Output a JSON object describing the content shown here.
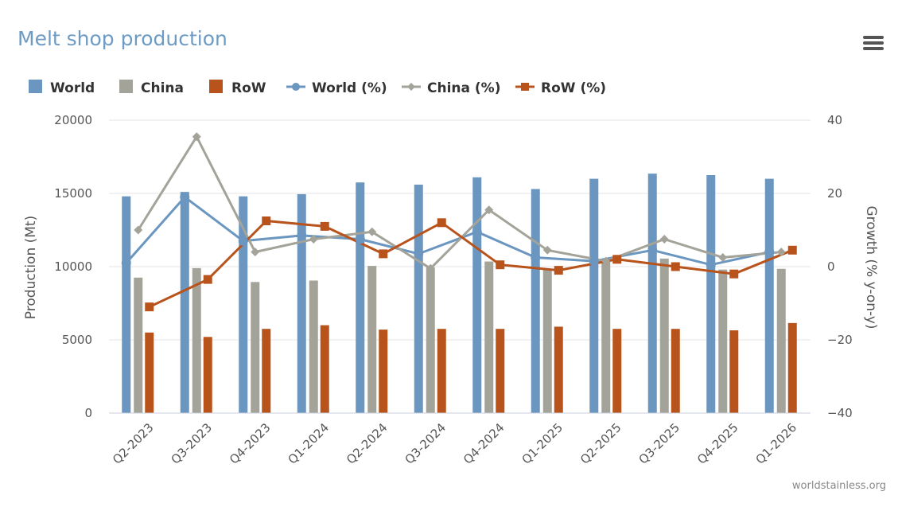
{
  "page": {
    "title": "Melt shop production",
    "credit": "worldstainless.org",
    "menu_icon": "hamburger-menu-icon"
  },
  "colors": {
    "world": "#6a96c0",
    "china": "#a3a39a",
    "row": "#b9531c",
    "title": "#6e9bc4",
    "grid": "#e6e6e6"
  },
  "chart_data": {
    "type": "bar",
    "title": "Melt shop production",
    "categories": [
      "Q2-2023",
      "Q3-2023",
      "Q4-2023",
      "Q1-2024",
      "Q2-2024",
      "Q3-2024",
      "Q4-2024",
      "Q1-2025",
      "Q2-2025",
      "Q3-2025",
      "Q4-2025",
      "Q1-2026"
    ],
    "left_axis": {
      "label": "Production (Mt)",
      "ylim": [
        0,
        20000
      ],
      "ticks": [
        "0",
        "5000",
        "10000",
        "15000",
        "20000"
      ]
    },
    "right_axis": {
      "label": "Growth (% y-on-y)",
      "ylim": [
        -40,
        40
      ],
      "ticks": [
        "−40",
        "−20",
        "0",
        "20",
        "40"
      ]
    },
    "grid": true,
    "legend_position": "top-left",
    "bar_series": [
      {
        "name": "World",
        "values": [
          14800,
          15100,
          14800,
          14950,
          15750,
          15600,
          16100,
          15300,
          16000,
          16350,
          16250,
          16000
        ]
      },
      {
        "name": "China",
        "values": [
          9250,
          9900,
          8950,
          9050,
          10050,
          9950,
          10350,
          9850,
          10400,
          10550,
          9800,
          9850
        ]
      },
      {
        "name": "RoW",
        "values": [
          5500,
          5200,
          5750,
          6000,
          5700,
          5750,
          5750,
          5900,
          5750,
          5750,
          5650,
          6150
        ]
      }
    ],
    "line_series": [
      {
        "name": "World (%)",
        "values": [
          1,
          19,
          7,
          8.5,
          7.5,
          3.5,
          9.5,
          2.5,
          1.5,
          4.5,
          0.5,
          4
        ]
      },
      {
        "name": "China (%)",
        "values": [
          10,
          35.5,
          4,
          7.5,
          9.5,
          -0.5,
          15.5,
          4.5,
          1.5,
          7.5,
          2.5,
          4
        ]
      },
      {
        "name": "RoW (%)",
        "values": [
          -11,
          -3.5,
          12.5,
          11,
          3.5,
          12,
          0.5,
          -1,
          2,
          0,
          -2,
          4.5
        ]
      }
    ]
  }
}
